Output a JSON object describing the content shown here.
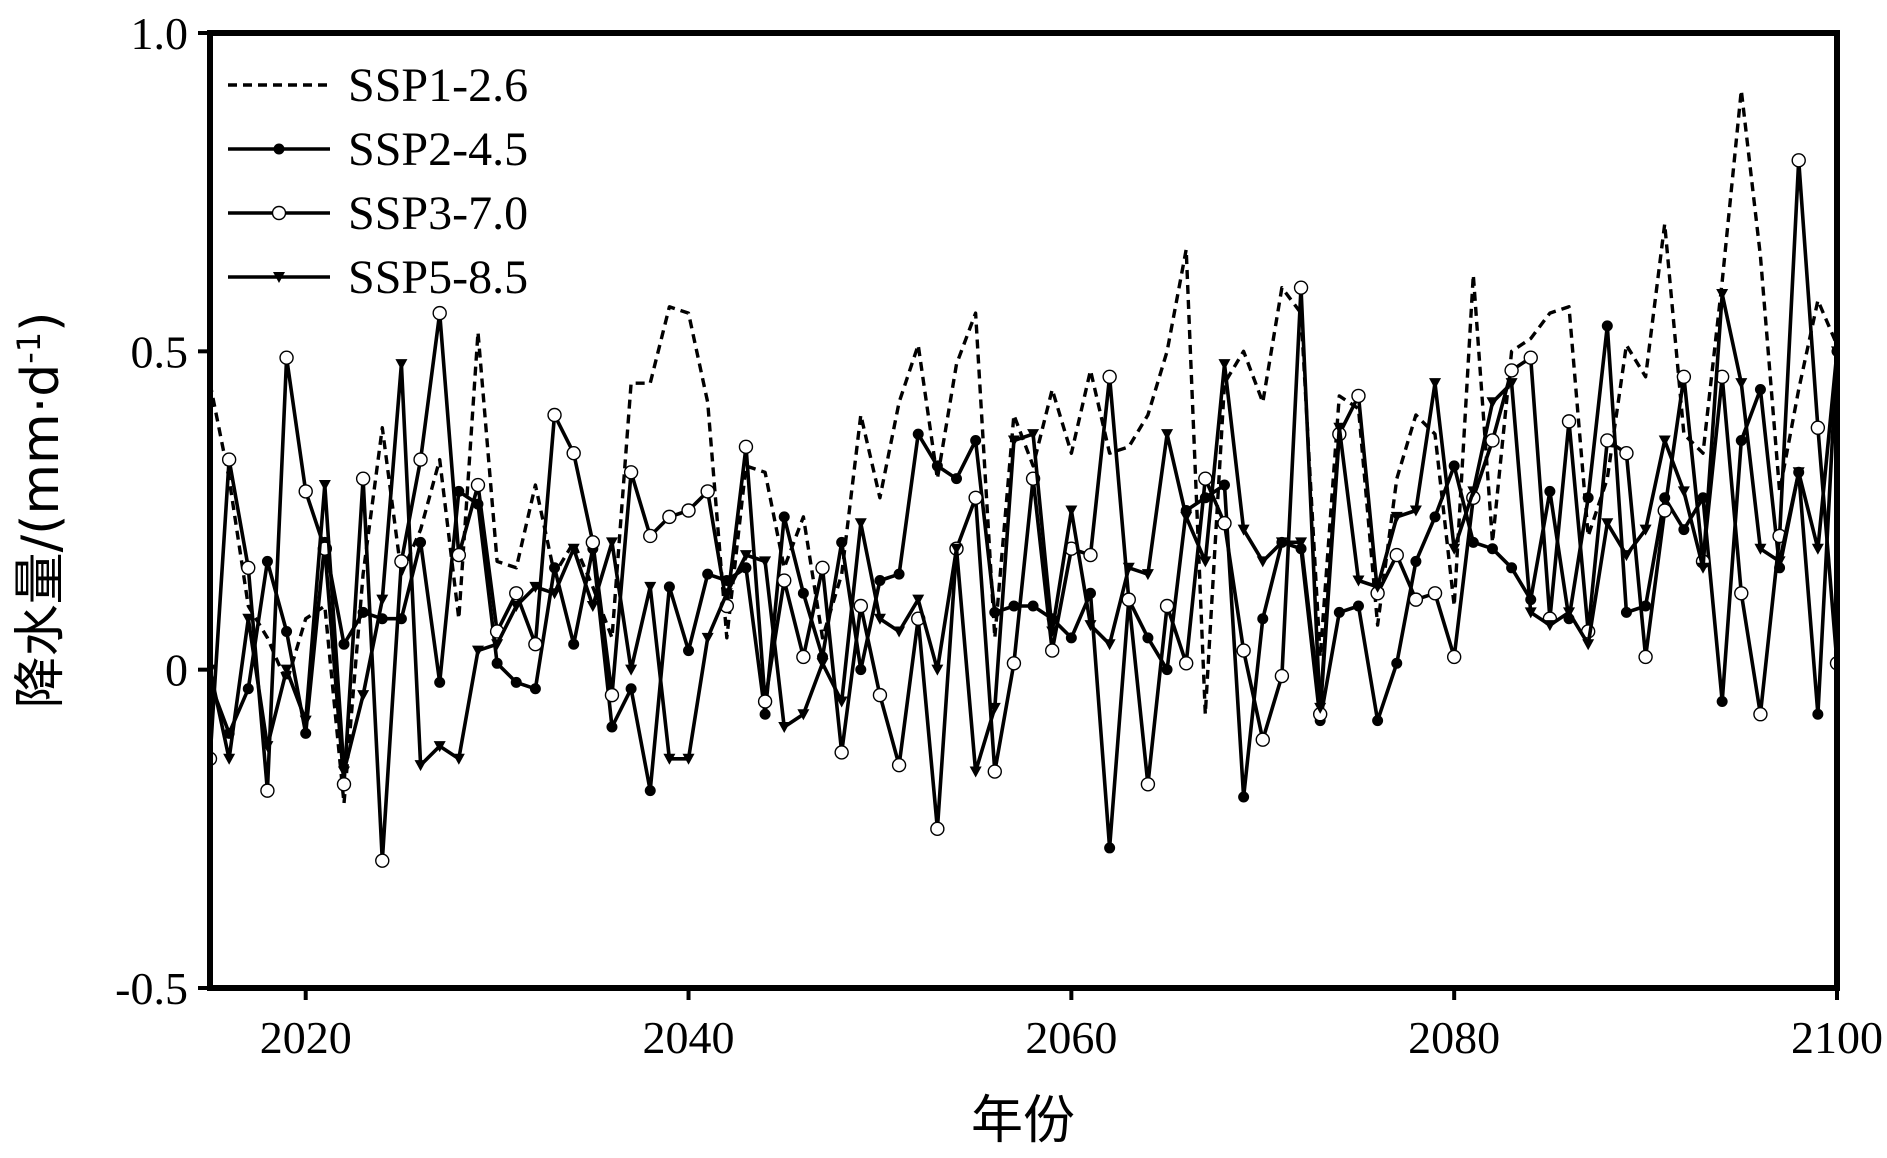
{
  "chart_data": {
    "type": "line",
    "title": "",
    "xlabel": "年份",
    "ylabel": "降水量/(mm·d",
    "ylabel_sup": "-1",
    "ylabel_tail": ")",
    "xlim": [
      2015,
      2100
    ],
    "ylim": [
      -0.5,
      1.0
    ],
    "xticks": [
      2020,
      2040,
      2060,
      2080,
      2100
    ],
    "xtick_labels": [
      "2020",
      "2040",
      "2060",
      "2080",
      "2100"
    ],
    "yticks": [
      -0.5,
      0,
      0.5,
      1.0
    ],
    "ytick_labels": [
      "-0.5",
      "0",
      "0.5",
      "1.0"
    ],
    "grid": false,
    "legend_position": "top-left",
    "x": [
      2015,
      2016,
      2017,
      2018,
      2019,
      2020,
      2021,
      2022,
      2023,
      2024,
      2025,
      2026,
      2027,
      2028,
      2029,
      2030,
      2031,
      2032,
      2033,
      2034,
      2035,
      2036,
      2037,
      2038,
      2039,
      2040,
      2041,
      2042,
      2043,
      2044,
      2045,
      2046,
      2047,
      2048,
      2049,
      2050,
      2051,
      2052,
      2053,
      2054,
      2055,
      2056,
      2057,
      2058,
      2059,
      2060,
      2061,
      2062,
      2063,
      2064,
      2065,
      2066,
      2067,
      2068,
      2069,
      2070,
      2071,
      2072,
      2073,
      2074,
      2075,
      2076,
      2077,
      2078,
      2079,
      2080,
      2081,
      2082,
      2083,
      2084,
      2085,
      2086,
      2087,
      2088,
      2089,
      2090,
      2091,
      2092,
      2093,
      2094,
      2095,
      2096,
      2097,
      2098,
      2099,
      2100
    ],
    "series": [
      {
        "name": "SSP1-2.6",
        "style": "dashed",
        "marker": "none",
        "values": [
          0.45,
          0.3,
          0.1,
          0.05,
          -0.02,
          0.08,
          0.1,
          -0.21,
          0.15,
          0.38,
          0.15,
          0.22,
          0.33,
          0.08,
          0.53,
          0.17,
          0.16,
          0.29,
          0.15,
          0.2,
          0.13,
          0.05,
          0.45,
          0.45,
          0.57,
          0.56,
          0.42,
          0.05,
          0.32,
          0.31,
          0.16,
          0.24,
          0.05,
          0.15,
          0.4,
          0.27,
          0.42,
          0.51,
          0.3,
          0.48,
          0.56,
          0.05,
          0.4,
          0.32,
          0.44,
          0.34,
          0.47,
          0.34,
          0.35,
          0.4,
          0.5,
          0.66,
          -0.07,
          0.45,
          0.5,
          0.42,
          0.6,
          0.56,
          0.02,
          0.43,
          0.41,
          0.07,
          0.3,
          0.4,
          0.37,
          0.1,
          0.62,
          0.2,
          0.5,
          0.52,
          0.56,
          0.57,
          0.21,
          0.3,
          0.51,
          0.46,
          0.7,
          0.37,
          0.34,
          0.61,
          0.91,
          0.65,
          0.28,
          0.44,
          0.58,
          0.51
        ]
      },
      {
        "name": "SSP2-4.5",
        "style": "solid",
        "marker": "filled-circle",
        "values": [
          -0.02,
          -0.1,
          -0.03,
          0.17,
          0.06,
          -0.1,
          0.2,
          0.04,
          0.09,
          0.08,
          0.08,
          0.2,
          -0.02,
          0.28,
          0.26,
          0.01,
          -0.02,
          -0.03,
          0.16,
          0.04,
          0.19,
          -0.09,
          -0.03,
          -0.19,
          0.13,
          0.03,
          0.15,
          0.14,
          0.16,
          -0.07,
          0.24,
          0.12,
          0.02,
          0.2,
          0.0,
          0.14,
          0.15,
          0.37,
          0.32,
          0.3,
          0.36,
          0.09,
          0.1,
          0.1,
          0.08,
          0.05,
          0.12,
          -0.28,
          0.11,
          0.05,
          0.0,
          0.25,
          0.27,
          0.29,
          -0.2,
          0.08,
          0.2,
          0.19,
          -0.08,
          0.09,
          0.1,
          -0.08,
          0.01,
          0.17,
          0.24,
          0.32,
          0.2,
          0.19,
          0.16,
          0.11,
          0.28,
          0.08,
          0.27,
          0.54,
          0.09,
          0.1,
          0.27,
          0.22,
          0.27,
          -0.05,
          0.36,
          0.44,
          0.16,
          0.31,
          -0.07,
          0.5
        ]
      },
      {
        "name": "SSP3-7.0",
        "style": "solid",
        "marker": "open-circle",
        "values": [
          -0.14,
          0.33,
          0.16,
          -0.19,
          0.49,
          0.28,
          0.19,
          -0.18,
          0.3,
          -0.3,
          0.17,
          0.33,
          0.56,
          0.18,
          0.29,
          0.06,
          0.12,
          0.04,
          0.4,
          0.34,
          0.2,
          -0.04,
          0.31,
          0.21,
          0.24,
          0.25,
          0.28,
          0.1,
          0.35,
          -0.05,
          0.14,
          0.02,
          0.16,
          -0.13,
          0.1,
          -0.04,
          -0.15,
          0.08,
          -0.25,
          0.19,
          0.27,
          -0.16,
          0.01,
          0.3,
          0.03,
          0.19,
          0.18,
          0.46,
          0.11,
          -0.18,
          0.1,
          0.01,
          0.3,
          0.23,
          0.03,
          -0.11,
          -0.01,
          0.6,
          -0.07,
          0.37,
          0.43,
          0.12,
          0.18,
          0.11,
          0.12,
          0.02,
          0.27,
          0.36,
          0.47,
          0.49,
          0.08,
          0.39,
          0.06,
          0.36,
          0.34,
          0.02,
          0.25,
          0.46,
          0.17,
          0.46,
          0.12,
          -0.07,
          0.21,
          0.8,
          0.38,
          0.01
        ]
      },
      {
        "name": "SSP5-8.5",
        "style": "solid",
        "marker": "filled-triangle-down",
        "values": [
          0.0,
          -0.14,
          0.08,
          -0.12,
          0.0,
          -0.08,
          0.29,
          -0.16,
          -0.04,
          0.11,
          0.48,
          -0.15,
          -0.12,
          -0.14,
          0.03,
          0.04,
          0.1,
          0.13,
          0.12,
          0.19,
          0.1,
          0.2,
          0.0,
          0.13,
          -0.14,
          -0.14,
          0.05,
          0.12,
          0.18,
          0.17,
          -0.09,
          -0.07,
          0.01,
          -0.05,
          0.23,
          0.08,
          0.06,
          0.11,
          0.0,
          0.19,
          -0.16,
          -0.06,
          0.36,
          0.37,
          0.06,
          0.25,
          0.07,
          0.04,
          0.16,
          0.15,
          0.37,
          0.24,
          0.17,
          0.48,
          0.22,
          0.17,
          0.2,
          0.2,
          -0.06,
          0.38,
          0.14,
          0.13,
          0.24,
          0.25,
          0.45,
          0.19,
          0.28,
          0.42,
          0.45,
          0.09,
          0.07,
          0.09,
          0.04,
          0.23,
          0.18,
          0.22,
          0.36,
          0.28,
          0.16,
          0.59,
          0.45,
          0.19,
          0.17,
          0.31,
          0.19,
          0.5
        ]
      }
    ]
  }
}
